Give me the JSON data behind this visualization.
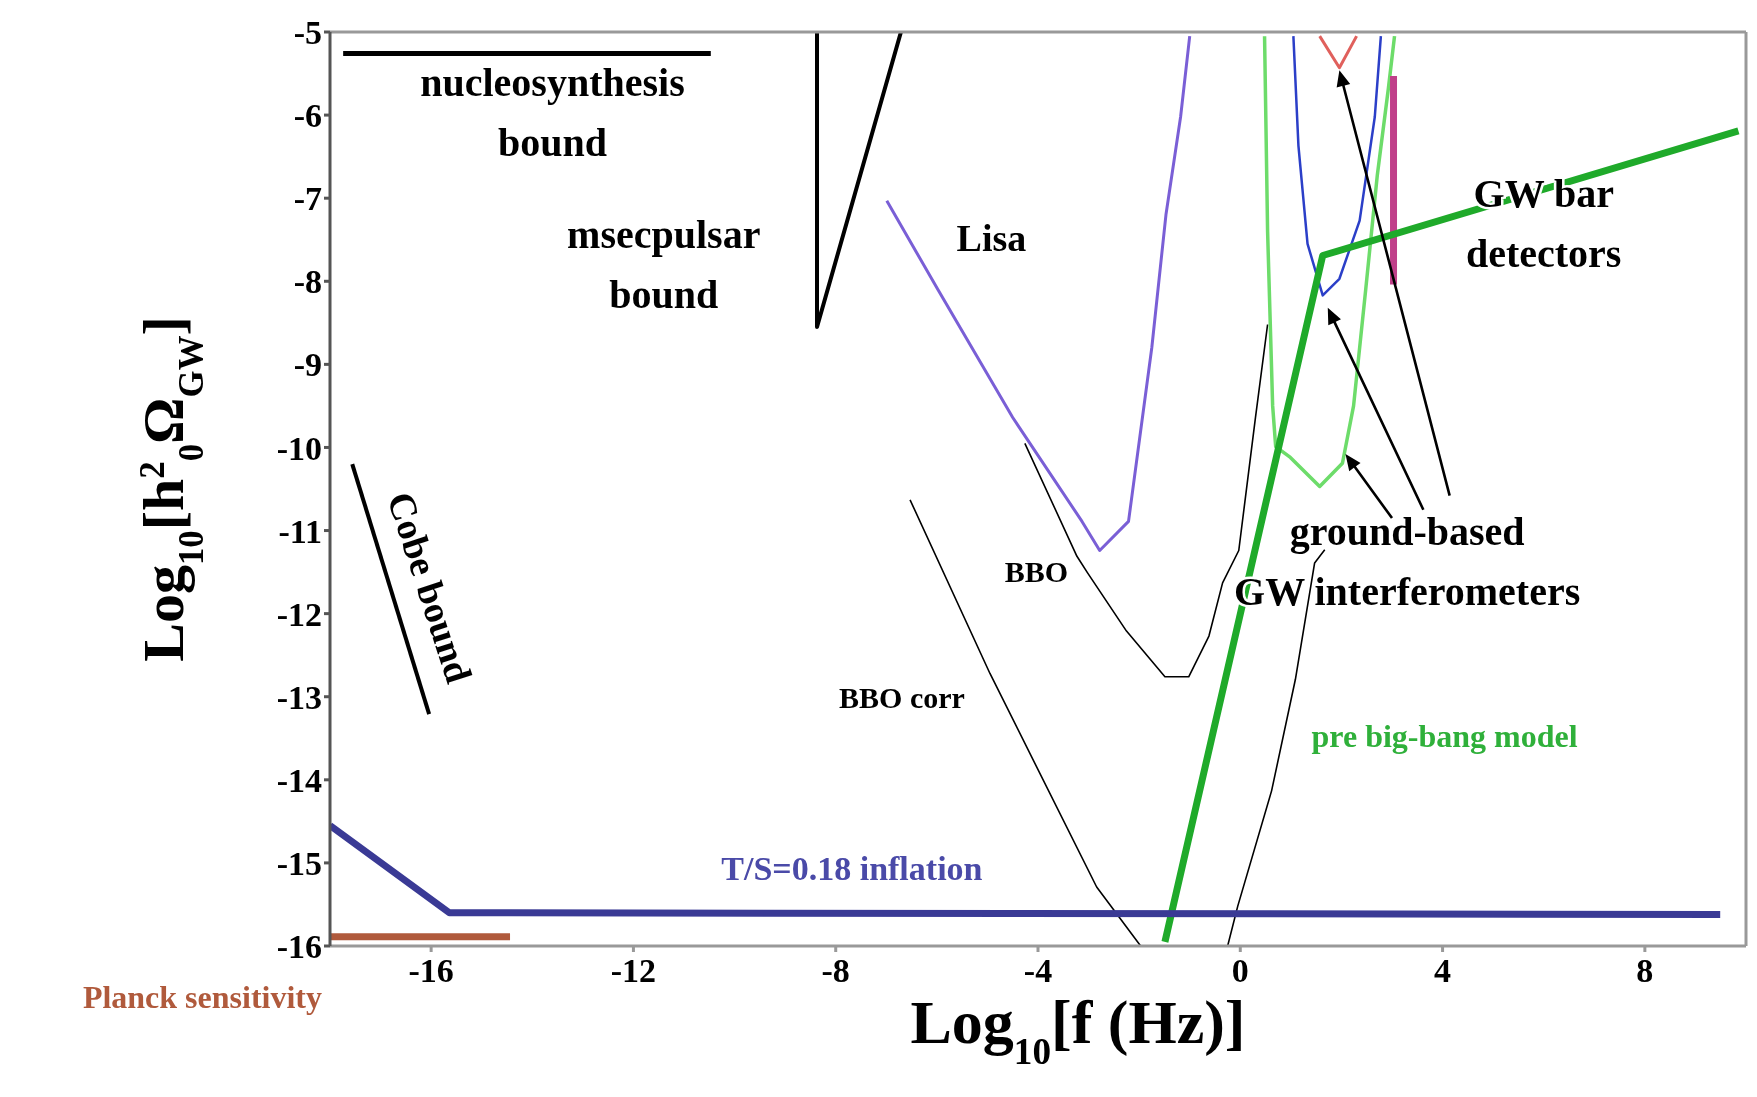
{
  "chart_data": {
    "type": "line",
    "xlabel": "Log$_{10}$[f (Hz)]",
    "ylabel": "Log$_{10}$[h$^{2}$$_{0}$Ω$_{GW}$]",
    "xlim": [
      -18,
      10
    ],
    "ylim": [
      -16,
      -5
    ],
    "xticks": [
      -16,
      -12,
      -8,
      -4,
      0,
      4,
      8
    ],
    "yticks": [
      -5,
      -6,
      -7,
      -8,
      -9,
      -10,
      -11,
      -12,
      -13,
      -14,
      -15,
      -16
    ],
    "marker": "none",
    "series": [
      {
        "color": "#000000",
        "x": [
          -17.74,
          -10.47
        ],
        "values": [
          -5.26,
          -5.26
        ]
      },
      {
        "color": "#000000",
        "x": [
          -8.37,
          -8.37,
          -6.71
        ],
        "values": [
          -5,
          -8.55,
          -5
        ]
      },
      {
        "color": "#000000",
        "x": [
          -17.56,
          -16.04
        ],
        "values": [
          -10.2,
          -13.21
        ]
      },
      {
        "color": "#7a5fd6",
        "x": [
          -6.99,
          -5.98,
          -4.5,
          -3.13,
          -2.78,
          -2.21,
          -1.75,
          -1.47,
          -1.18,
          -1.0
        ],
        "values": [
          -7.03,
          -8.1,
          -9.64,
          -10.89,
          -11.24,
          -10.89,
          -8.8,
          -7.2,
          -6.02,
          -5.05
        ]
      },
      {
        "color": "#000000",
        "x": [
          -4.26,
          -3.23,
          -3.02,
          -2.25,
          -1.49,
          -1.02,
          -0.62,
          -0.35,
          -0.03,
          0.3,
          0.54
        ],
        "values": [
          -9.95,
          -11.31,
          -11.51,
          -12.21,
          -12.76,
          -12.76,
          -12.27,
          -11.63,
          -11.24,
          -9.64,
          -8.52
        ]
      },
      {
        "color": "#000000",
        "x": [
          -6.53,
          -4.95,
          -2.84,
          -1.97,
          -1.1,
          -0.25,
          -0.05,
          0.62,
          1.09,
          1.47,
          1.67
        ],
        "values": [
          -10.63,
          -12.72,
          -15.29,
          -16,
          null,
          -16,
          -15.52,
          -14.13,
          -12.79,
          -11.39,
          -11.23
        ]
      },
      {
        "color": "#6ddc6a",
        "x": [
          0.48,
          0.54,
          0.64,
          0.7,
          0.99,
          1.57,
          2.02,
          2.24,
          2.48,
          2.71,
          2.93,
          3.05
        ],
        "values": [
          -5.05,
          -7.4,
          -9.5,
          -9.99,
          -10.12,
          -10.47,
          -10.19,
          -9.5,
          -8.1,
          -6.72,
          -5.67,
          -5.05
        ]
      },
      {
        "color": "#2b3fc8",
        "x": [
          1.05,
          1.15,
          1.33,
          1.63,
          1.96,
          2.36,
          2.66,
          2.78
        ],
        "values": [
          -5.05,
          -6.37,
          -7.55,
          -8.17,
          -7.97,
          -7.27,
          -6.02,
          -5.05
        ]
      },
      {
        "color": "#e0605c",
        "x": [
          1.57,
          1.96,
          2.3
        ],
        "values": [
          -5.05,
          -5.43,
          -5.05
        ]
      },
      {
        "color": "#c0408a",
        "x": [
          3.03,
          3.03
        ],
        "values": [
          -5.53,
          -8.04
        ]
      },
      {
        "color": "#1faa2a",
        "x": [
          -1.49,
          1.63,
          9.85
        ],
        "values": [
          -15.95,
          -7.69,
          -6.19
        ]
      },
      {
        "color": "#3a3a95",
        "x": [
          -18,
          -15.64,
          9.49
        ],
        "values": [
          -14.55,
          -15.6,
          -15.62
        ]
      },
      {
        "color": "#b05a3c",
        "x": [
          -18,
          -14.44
        ],
        "values": [
          -15.89,
          -15.89
        ]
      }
    ],
    "annotations": [
      "nucleosynthesis\nbound",
      "msecpulsar\nbound",
      "Cobe bound",
      "Lisa",
      "BBO",
      "BBO corr",
      "ground-based\nGW interferometers",
      "GW bar\ndetectors",
      "pre big-bang model",
      "T/S=0.18 inflation",
      "Planck sensitivity"
    ]
  }
}
